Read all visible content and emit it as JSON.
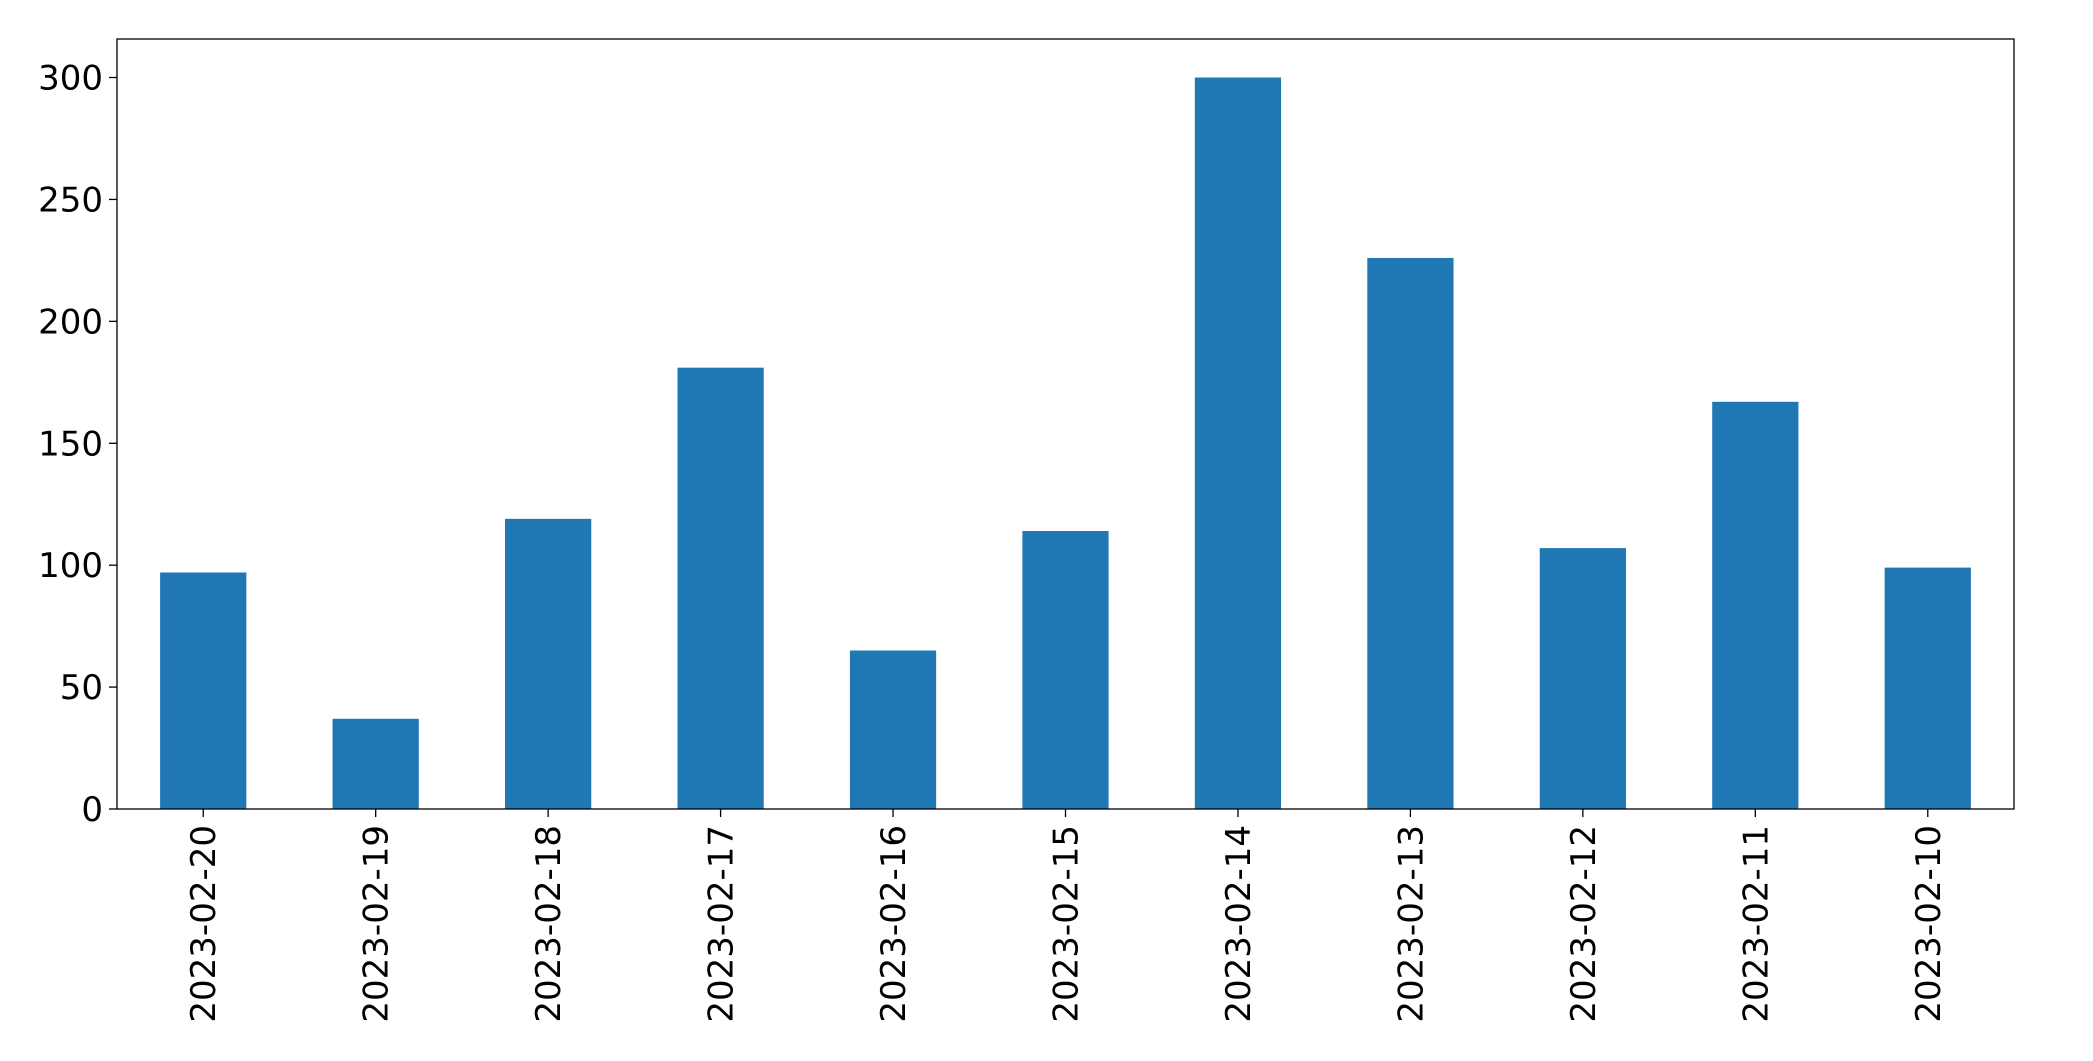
{
  "chart_data": {
    "type": "bar",
    "title": "",
    "xlabel": "",
    "ylabel": "",
    "categories": [
      "2023-02-20",
      "2023-02-19",
      "2023-02-18",
      "2023-02-17",
      "2023-02-16",
      "2023-02-15",
      "2023-02-14",
      "2023-02-13",
      "2023-02-12",
      "2023-02-11",
      "2023-02-10"
    ],
    "values": [
      97,
      37,
      119,
      181,
      65,
      114,
      300,
      226,
      107,
      167,
      99
    ],
    "ylim": [
      0,
      315.8
    ],
    "yticks": [
      0,
      50,
      100,
      150,
      200,
      250,
      300
    ],
    "bar_color": "#1f77b4",
    "grid": false,
    "legend": "none",
    "x_tick_rotation": "vertical"
  }
}
